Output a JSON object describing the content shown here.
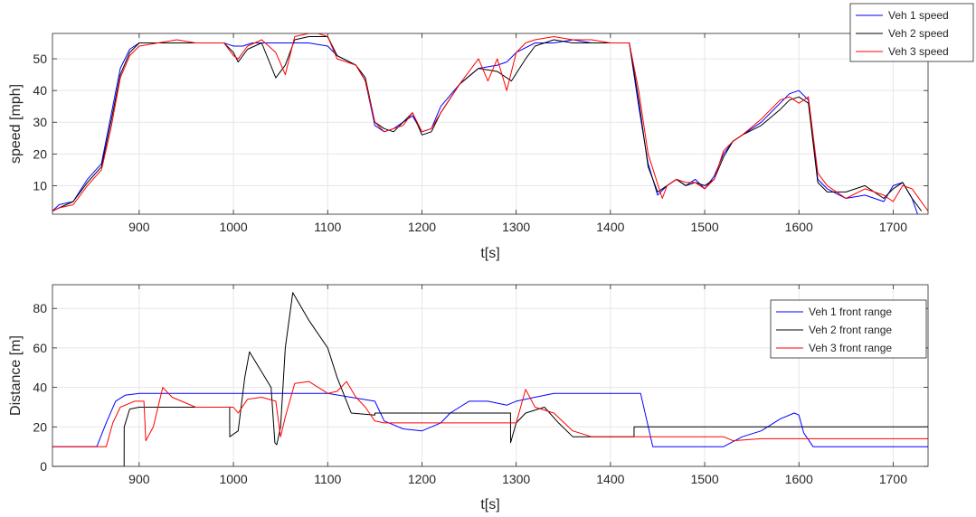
{
  "chart_data": [
    {
      "type": "line",
      "xlabel": "t[s]",
      "ylabel": "speed [mph]",
      "xlim": [
        808,
        1737
      ],
      "ylim": [
        1,
        58
      ],
      "xticks": [
        900,
        1000,
        1100,
        1200,
        1300,
        1400,
        1500,
        1600,
        1700
      ],
      "yticks": [
        10,
        20,
        30,
        40,
        50
      ],
      "grid": true,
      "legend_position": "outside-top-right",
      "series": [
        {
          "name": "Veh 1 speed",
          "color": "#0000ff",
          "x": [
            808,
            815,
            830,
            845,
            860,
            870,
            880,
            890,
            900,
            920,
            950,
            990,
            1000,
            1010,
            1020,
            1040,
            1060,
            1080,
            1100,
            1110,
            1130,
            1140,
            1150,
            1160,
            1170,
            1180,
            1190,
            1200,
            1210,
            1220,
            1240,
            1260,
            1280,
            1290,
            1300,
            1320,
            1340,
            1360,
            1380,
            1400,
            1420,
            1430,
            1440,
            1450,
            1460,
            1470,
            1480,
            1490,
            1500,
            1510,
            1520,
            1530,
            1540,
            1560,
            1580,
            1590,
            1600,
            1610,
            1620,
            1630,
            1650,
            1670,
            1690,
            1700,
            1710,
            1720,
            1726
          ],
          "y": [
            2,
            4,
            5,
            12,
            17,
            32,
            47,
            53,
            55,
            55,
            55,
            55,
            54,
            54,
            55,
            55,
            55,
            55,
            54,
            51,
            48,
            43,
            29,
            27,
            28,
            30,
            32,
            27,
            28,
            35,
            42,
            47,
            48,
            49,
            52,
            55,
            55,
            56,
            55,
            55,
            55,
            35,
            17,
            7,
            10,
            12,
            10,
            12,
            9,
            13,
            20,
            24,
            26,
            30,
            36,
            39,
            40,
            37,
            12,
            9,
            6,
            7,
            5,
            10,
            11,
            6,
            1
          ]
        },
        {
          "name": "Veh 2 speed",
          "color": "#000000",
          "x": [
            808,
            815,
            830,
            845,
            860,
            870,
            880,
            890,
            900,
            920,
            950,
            990,
            1000,
            1005,
            1015,
            1030,
            1045,
            1055,
            1065,
            1080,
            1090,
            1100,
            1110,
            1130,
            1140,
            1150,
            1160,
            1170,
            1180,
            1190,
            1200,
            1210,
            1220,
            1240,
            1260,
            1280,
            1295,
            1310,
            1320,
            1340,
            1360,
            1380,
            1400,
            1420,
            1430,
            1440,
            1450,
            1460,
            1470,
            1480,
            1490,
            1500,
            1510,
            1520,
            1530,
            1540,
            1560,
            1580,
            1590,
            1600,
            1610,
            1620,
            1630,
            1650,
            1670,
            1690,
            1700,
            1710,
            1720,
            1730
          ],
          "y": [
            2,
            3,
            5,
            11,
            16,
            30,
            45,
            52,
            55,
            55,
            55,
            55,
            52,
            49,
            53,
            55,
            44,
            48,
            56,
            57,
            57,
            57,
            51,
            48,
            44,
            30,
            28,
            27,
            30,
            33,
            26,
            27,
            33,
            42,
            47,
            46,
            43,
            50,
            54,
            56,
            55,
            55,
            55,
            55,
            37,
            16,
            8,
            10,
            12,
            10,
            11,
            10,
            12,
            19,
            24,
            26,
            29,
            34,
            37,
            38,
            36,
            11,
            8,
            8,
            10,
            6,
            9,
            11,
            6,
            2
          ]
        },
        {
          "name": "Veh 3 speed",
          "color": "#ff0000",
          "x": [
            808,
            815,
            830,
            845,
            860,
            870,
            880,
            890,
            900,
            920,
            940,
            960,
            990,
            1000,
            1005,
            1015,
            1030,
            1045,
            1055,
            1065,
            1080,
            1090,
            1100,
            1110,
            1130,
            1140,
            1150,
            1160,
            1170,
            1180,
            1190,
            1200,
            1210,
            1220,
            1240,
            1260,
            1270,
            1280,
            1290,
            1300,
            1310,
            1320,
            1340,
            1360,
            1380,
            1400,
            1420,
            1430,
            1440,
            1455,
            1460,
            1470,
            1480,
            1490,
            1500,
            1510,
            1520,
            1530,
            1540,
            1560,
            1580,
            1590,
            1600,
            1610,
            1620,
            1630,
            1650,
            1670,
            1690,
            1700,
            1710,
            1720,
            1737
          ],
          "y": [
            2,
            3,
            4,
            10,
            15,
            28,
            44,
            51,
            54,
            55,
            56,
            55,
            55,
            51,
            50,
            54,
            56,
            52,
            45,
            57,
            58,
            58,
            57,
            50,
            48,
            43,
            30,
            27,
            28,
            29,
            33,
            27,
            28,
            33,
            42,
            50,
            43,
            50,
            40,
            52,
            55,
            56,
            57,
            56,
            56,
            55,
            55,
            40,
            20,
            6,
            10,
            12,
            11,
            11,
            9,
            12,
            21,
            24,
            26,
            31,
            37,
            38,
            36,
            38,
            14,
            10,
            6,
            9,
            7,
            5,
            10,
            9,
            2
          ]
        }
      ]
    },
    {
      "type": "line",
      "xlabel": "t[s]",
      "ylabel": "Distance [m]",
      "xlim": [
        808,
        1737
      ],
      "ylim": [
        0,
        92
      ],
      "xticks": [
        900,
        1000,
        1100,
        1200,
        1300,
        1400,
        1500,
        1600,
        1700
      ],
      "yticks": [
        0,
        20,
        40,
        60,
        80
      ],
      "grid": true,
      "legend_position": "top-right",
      "series": [
        {
          "name": "Veh 1 front range",
          "color": "#0000ff",
          "x": [
            808,
            855,
            865,
            875,
            885,
            900,
            1000,
            1010,
            1100,
            1150,
            1160,
            1170,
            1180,
            1200,
            1210,
            1220,
            1230,
            1250,
            1270,
            1290,
            1300,
            1320,
            1340,
            1420,
            1432,
            1445,
            1500,
            1520,
            1540,
            1560,
            1580,
            1595,
            1600,
            1605,
            1615,
            1737
          ],
          "y": [
            10,
            10,
            22,
            33,
            36,
            37,
            37,
            37,
            37,
            33,
            23,
            21,
            19,
            18,
            20,
            22,
            27,
            33,
            33,
            31,
            33,
            35,
            37,
            37,
            37,
            10,
            10,
            10,
            15,
            18,
            24,
            27,
            26,
            17,
            10,
            10
          ]
        },
        {
          "name": "Veh 2 front range",
          "color": "#000000",
          "x": [
            808,
            884,
            884.1,
            890,
            900,
            996,
            996.1,
            1005,
            1012,
            1017,
            1040,
            1044,
            1046,
            1050,
            1055,
            1063,
            1080,
            1100,
            1110,
            1125,
            1150,
            1150.1,
            1294,
            1294.1,
            1300,
            1310,
            1330,
            1345,
            1360,
            1390,
            1425,
            1425.1,
            1737
          ],
          "y": [
            0,
            0,
            20,
            29,
            30,
            30,
            15,
            18,
            45,
            58,
            40,
            12,
            11,
            20,
            60,
            88,
            74,
            60,
            45,
            27,
            26,
            27,
            27,
            12,
            22,
            27,
            30,
            22,
            15,
            15,
            15,
            20,
            20
          ]
        },
        {
          "name": "Veh 3 front range",
          "color": "#ff0000",
          "x": [
            808,
            865,
            872,
            880,
            895,
            905,
            907,
            915,
            925,
            935,
            960,
            995,
            1000,
            1005,
            1015,
            1030,
            1045,
            1050,
            1055,
            1065,
            1080,
            1090,
            1100,
            1110,
            1120,
            1130,
            1140,
            1150,
            1160,
            1200,
            1300,
            1310,
            1320,
            1340,
            1360,
            1380,
            1420,
            1440,
            1450,
            1520,
            1530,
            1560,
            1580,
            1600,
            1737
          ],
          "y": [
            10,
            10,
            22,
            30,
            33,
            33,
            13,
            20,
            40,
            35,
            30,
            30,
            30,
            27,
            34,
            35,
            33,
            15,
            25,
            42,
            43,
            40,
            37,
            38,
            43,
            35,
            30,
            23,
            22,
            22,
            22,
            39,
            30,
            27,
            18,
            15,
            15,
            15,
            15,
            15,
            13,
            14,
            14,
            14,
            14
          ]
        }
      ]
    }
  ]
}
